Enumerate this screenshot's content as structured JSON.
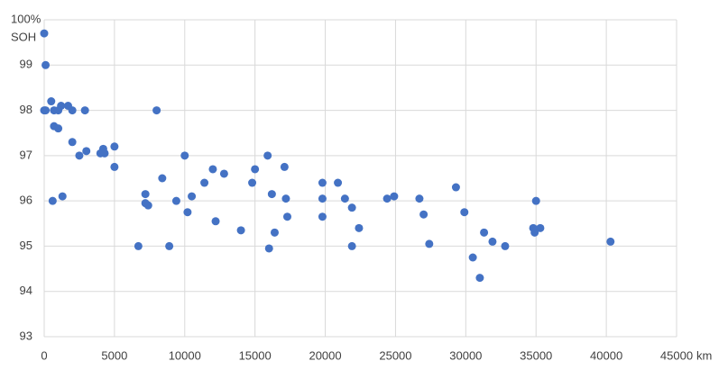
{
  "chart_data": {
    "type": "scatter",
    "y_label": "SOH",
    "x_label": "km",
    "color": "#4472c4",
    "grid": true,
    "xlim": [
      0,
      45000
    ],
    "xticks": [
      0,
      5000,
      10000,
      15000,
      20000,
      25000,
      30000,
      35000,
      40000,
      45000
    ],
    "ylim": [
      93,
      100
    ],
    "yticks": [
      93,
      94,
      95,
      96,
      97,
      98,
      99,
      {
        "value": 100,
        "label": "100%"
      }
    ],
    "x": [
      0,
      100,
      0,
      100,
      500,
      700,
      1000,
      1200,
      1700,
      2000,
      2900,
      700,
      1000,
      2000,
      2500,
      3000,
      4000,
      4200,
      4300,
      5000,
      5000,
      600,
      1300,
      6700,
      7200,
      7200,
      7400,
      8000,
      8400,
      8900,
      9400,
      10000,
      10200,
      10500,
      11400,
      12000,
      12200,
      12800,
      14000,
      14800,
      15000,
      15900,
      16000,
      16200,
      16400,
      17100,
      17200,
      17300,
      19800,
      19800,
      19800,
      20900,
      21400,
      21900,
      21900,
      22400,
      24400,
      24900,
      26700,
      27000,
      27400,
      29300,
      29900,
      30500,
      31000,
      31300,
      31900,
      32800,
      34800,
      34900,
      35000,
      35300,
      40300
    ],
    "values": [
      99.7,
      99.0,
      98.0,
      98.0,
      98.2,
      98.0,
      98.0,
      98.1,
      98.1,
      98.0,
      98.0,
      97.65,
      97.6,
      97.3,
      97.0,
      97.1,
      97.05,
      97.15,
      97.05,
      97.2,
      96.75,
      96.0,
      96.1,
      95.0,
      96.15,
      95.95,
      95.9,
      98.0,
      96.5,
      95.0,
      96.0,
      97.0,
      95.75,
      96.1,
      96.4,
      96.7,
      95.55,
      96.6,
      95.35,
      96.4,
      96.7,
      97.0,
      94.95,
      96.15,
      95.3,
      96.75,
      96.05,
      95.65,
      96.4,
      96.05,
      95.65,
      96.4,
      96.05,
      95.85,
      95.0,
      95.4,
      96.05,
      96.1,
      96.05,
      95.7,
      95.05,
      96.3,
      95.75,
      94.75,
      94.3,
      95.3,
      95.1,
      95.0,
      95.4,
      95.3,
      96.0,
      95.4,
      95.1
    ]
  }
}
